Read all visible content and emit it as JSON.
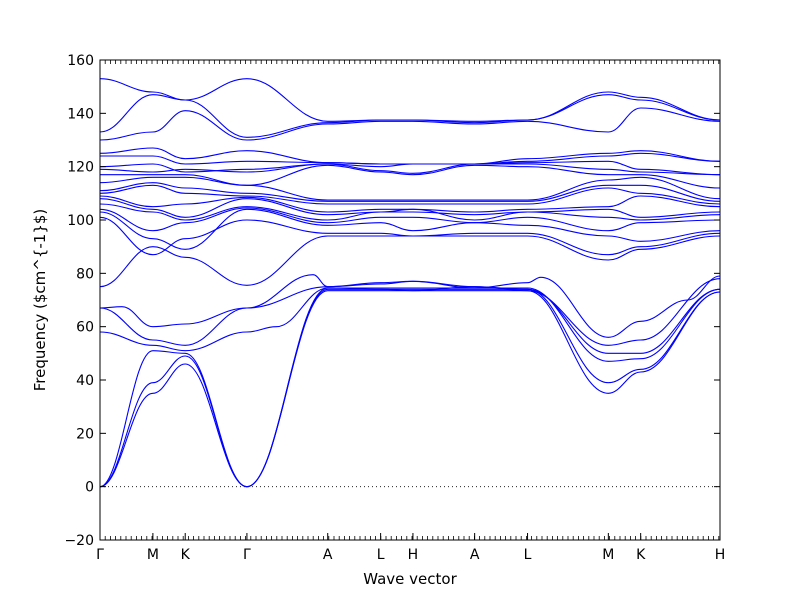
{
  "chart_data": {
    "type": "line",
    "xlabel": "Wave vector",
    "ylabel": "Frequency ($cm^{-1}$)",
    "ylim": [
      -20,
      160
    ],
    "y_ticks": [
      "−20",
      "0",
      "20",
      "40",
      "60",
      "80",
      "100",
      "120",
      "140",
      "160"
    ],
    "y_tick_values": [
      -20,
      0,
      20,
      40,
      60,
      80,
      100,
      120,
      140,
      160
    ],
    "x_range": [
      0,
      4.22
    ],
    "high_symmetry_points": [
      {
        "label": "Γ",
        "x": 0.0
      },
      {
        "label": "M",
        "x": 0.36
      },
      {
        "label": "K",
        "x": 0.58
      },
      {
        "label": "Γ",
        "x": 1.0
      },
      {
        "label": "A",
        "x": 1.55
      },
      {
        "label": "L",
        "x": 1.91
      },
      {
        "label": "H",
        "x": 2.13
      },
      {
        "label": "A",
        "x": 2.55
      },
      {
        "label": "L",
        "x": 2.91
      },
      {
        "label": "M",
        "x": 3.46
      },
      {
        "label": "K",
        "x": 3.68
      },
      {
        "label": "H",
        "x": 4.22
      }
    ],
    "zero_line": true,
    "line_color": "#0000ff",
    "series": [
      {
        "x": [
          0,
          0.36,
          0.58,
          1.0,
          1.55,
          1.91,
          2.13,
          2.55,
          2.91,
          3.46,
          3.68,
          4.22
        ],
        "y": [
          0,
          35,
          46,
          0,
          73.5,
          73.5,
          73.5,
          73.5,
          73.5,
          35,
          43,
          73
        ]
      },
      {
        "x": [
          0,
          0.36,
          0.58,
          1.0,
          1.55,
          1.91,
          2.13,
          2.55,
          2.91,
          3.46,
          3.68,
          4.22
        ],
        "y": [
          0,
          39,
          49,
          0,
          74,
          74,
          74,
          74,
          74,
          39,
          44,
          73
        ]
      },
      {
        "x": [
          0,
          0.36,
          0.58,
          1.0,
          1.55,
          1.91,
          2.13,
          2.55,
          2.91,
          3.46,
          3.68,
          4.22
        ],
        "y": [
          0,
          51,
          50,
          0,
          74.5,
          74.5,
          74.5,
          74.5,
          74.5,
          47,
          48,
          74
        ]
      },
      {
        "x": [
          0,
          0.36,
          0.58,
          1.0,
          1.2,
          1.55,
          1.91,
          2.13,
          2.55,
          2.91,
          3.46,
          3.68,
          4.22
        ],
        "y": [
          58,
          53,
          51,
          58,
          60,
          74.5,
          74,
          73.5,
          75,
          74,
          50,
          50,
          74
        ]
      },
      {
        "x": [
          0,
          0.36,
          0.58,
          1.0,
          1.45,
          1.55,
          1.91,
          2.13,
          2.55,
          2.91,
          3.46,
          3.68,
          4.22
        ],
        "y": [
          67,
          55,
          53,
          67,
          79.5,
          75,
          76,
          77,
          75,
          73.5,
          53,
          55,
          78
        ]
      },
      {
        "x": [
          0,
          0.15,
          0.36,
          0.58,
          1.0,
          1.55,
          1.91,
          2.13,
          2.55,
          2.91,
          3.0,
          3.46,
          3.68,
          4.0,
          4.22
        ],
        "y": [
          67,
          67.5,
          60,
          61,
          67,
          75,
          76.5,
          77,
          74.5,
          76.5,
          78.5,
          56,
          62,
          70,
          79
        ]
      },
      {
        "x": [
          0,
          0.36,
          0.58,
          1.0,
          1.55,
          1.91,
          2.13,
          2.55,
          2.91,
          3.46,
          3.68,
          4.22
        ],
        "y": [
          75,
          90,
          86,
          75.5,
          94,
          94,
          94,
          94,
          94,
          85,
          89,
          94
        ]
      },
      {
        "x": [
          0,
          0.36,
          0.58,
          1.0,
          1.55,
          1.91,
          2.13,
          2.55,
          2.91,
          3.46,
          3.68,
          4.22
        ],
        "y": [
          101,
          87,
          93,
          100,
          95,
          95,
          94,
          95,
          95,
          87,
          90,
          95
        ]
      },
      {
        "x": [
          0,
          0.36,
          0.58,
          1.0,
          1.55,
          1.91,
          2.13,
          2.55,
          2.91,
          3.46,
          3.68,
          4.22
        ],
        "y": [
          103,
          93,
          89,
          104,
          98,
          99,
          96,
          99,
          98,
          94,
          92,
          96
        ]
      },
      {
        "x": [
          0,
          0.36,
          0.58,
          1.0,
          1.55,
          1.91,
          2.13,
          2.55,
          2.91,
          3.46,
          3.68,
          4.22
        ],
        "y": [
          104,
          96,
          99,
          104.5,
          99,
          101,
          101,
          99,
          101,
          96,
          99,
          100
        ]
      },
      {
        "x": [
          0,
          0.36,
          0.58,
          1.0,
          1.55,
          1.91,
          2.13,
          2.55,
          2.91,
          3.46,
          3.68,
          4.22
        ],
        "y": [
          106,
          103,
          100,
          105,
          100,
          103,
          104,
          100,
          103,
          101,
          100,
          102
        ]
      },
      {
        "x": [
          0,
          0.36,
          0.58,
          1.0,
          1.55,
          1.91,
          2.13,
          2.55,
          2.91,
          3.46,
          3.68,
          4.22
        ],
        "y": [
          108,
          104,
          101,
          108,
          102,
          103,
          103,
          102,
          103,
          104,
          101,
          103
        ]
      },
      {
        "x": [
          0,
          0.36,
          0.58,
          1.0,
          1.55,
          1.91,
          2.13,
          2.55,
          2.91,
          3.46,
          3.68,
          4.22
        ],
        "y": [
          109,
          105,
          106,
          108.5,
          103,
          104,
          104,
          103,
          104,
          105,
          109,
          105
        ]
      },
      {
        "x": [
          0,
          0.36,
          0.58,
          1.0,
          1.55,
          1.91,
          2.13,
          2.55,
          2.91,
          3.46,
          3.68,
          4.22
        ],
        "y": [
          110,
          113,
          110,
          109,
          106,
          106,
          106,
          106,
          106,
          112,
          110,
          106
        ]
      },
      {
        "x": [
          0,
          0.36,
          0.58,
          1.0,
          1.55,
          1.91,
          2.13,
          2.55,
          2.91,
          3.46,
          3.68,
          4.22
        ],
        "y": [
          111,
          114,
          112,
          110,
          107,
          107,
          107,
          107,
          107,
          113,
          113,
          107
        ]
      },
      {
        "x": [
          0,
          0.36,
          0.58,
          1.0,
          1.55,
          1.91,
          2.13,
          2.55,
          2.91,
          3.46,
          3.68,
          4.22
        ],
        "y": [
          114,
          116,
          116,
          113,
          107.5,
          107.5,
          107.5,
          107.5,
          107.5,
          115,
          116,
          108
        ]
      },
      {
        "x": [
          0,
          0.36,
          0.58,
          1.0,
          1.55,
          1.91,
          2.13,
          2.55,
          2.91,
          3.46,
          3.68,
          4.22
        ],
        "y": [
          117,
          117,
          117,
          113,
          120.5,
          118,
          117,
          120.5,
          120,
          117,
          117,
          112
        ]
      },
      {
        "x": [
          0,
          0.36,
          0.58,
          1.0,
          1.55,
          1.91,
          2.13,
          2.55,
          2.91,
          3.46,
          3.68,
          4.22
        ],
        "y": [
          119,
          118,
          119,
          118,
          121,
          118.5,
          117.5,
          121,
          121,
          119,
          118,
          117
        ]
      },
      {
        "x": [
          0,
          0.36,
          0.58,
          1.0,
          1.55,
          1.91,
          2.13,
          2.55,
          2.91,
          3.46,
          3.68,
          4.22
        ],
        "y": [
          120,
          121,
          118,
          119,
          121,
          120,
          121,
          121,
          121.5,
          122,
          119,
          117
        ]
      },
      {
        "x": [
          0,
          0.36,
          0.58,
          1.0,
          1.55,
          1.91,
          2.13,
          2.55,
          2.91,
          3.46,
          3.68,
          4.22
        ],
        "y": [
          124,
          124,
          121,
          122,
          121.5,
          121,
          121,
          121,
          122,
          124,
          125,
          122
        ]
      },
      {
        "x": [
          0,
          0.36,
          0.58,
          1.0,
          1.55,
          1.91,
          2.13,
          2.55,
          2.91,
          3.46,
          3.68,
          4.22
        ],
        "y": [
          125,
          127,
          123,
          126,
          121.5,
          121,
          121,
          121,
          123,
          125,
          126,
          122
        ]
      },
      {
        "x": [
          0,
          0.36,
          0.58,
          1.0,
          1.55,
          1.91,
          2.13,
          2.55,
          2.91,
          3.46,
          3.68,
          4.22
        ],
        "y": [
          130,
          133,
          141,
          130,
          136,
          137,
          137,
          136,
          137,
          133,
          142,
          137
        ]
      },
      {
        "x": [
          0,
          0.36,
          0.58,
          1.0,
          1.55,
          1.91,
          2.13,
          2.55,
          2.91,
          3.46,
          3.68,
          4.22
        ],
        "y": [
          133,
          147,
          145,
          131,
          136.5,
          137.5,
          137.5,
          136.5,
          137.5,
          147,
          145,
          137.5
        ]
      },
      {
        "x": [
          0,
          0.36,
          0.58,
          1.0,
          1.55,
          1.91,
          2.13,
          2.55,
          2.91,
          3.46,
          3.68,
          4.22
        ],
        "y": [
          153,
          148,
          145,
          153,
          137,
          137.5,
          137.5,
          137,
          137.5,
          148,
          146,
          137.5
        ]
      }
    ]
  }
}
